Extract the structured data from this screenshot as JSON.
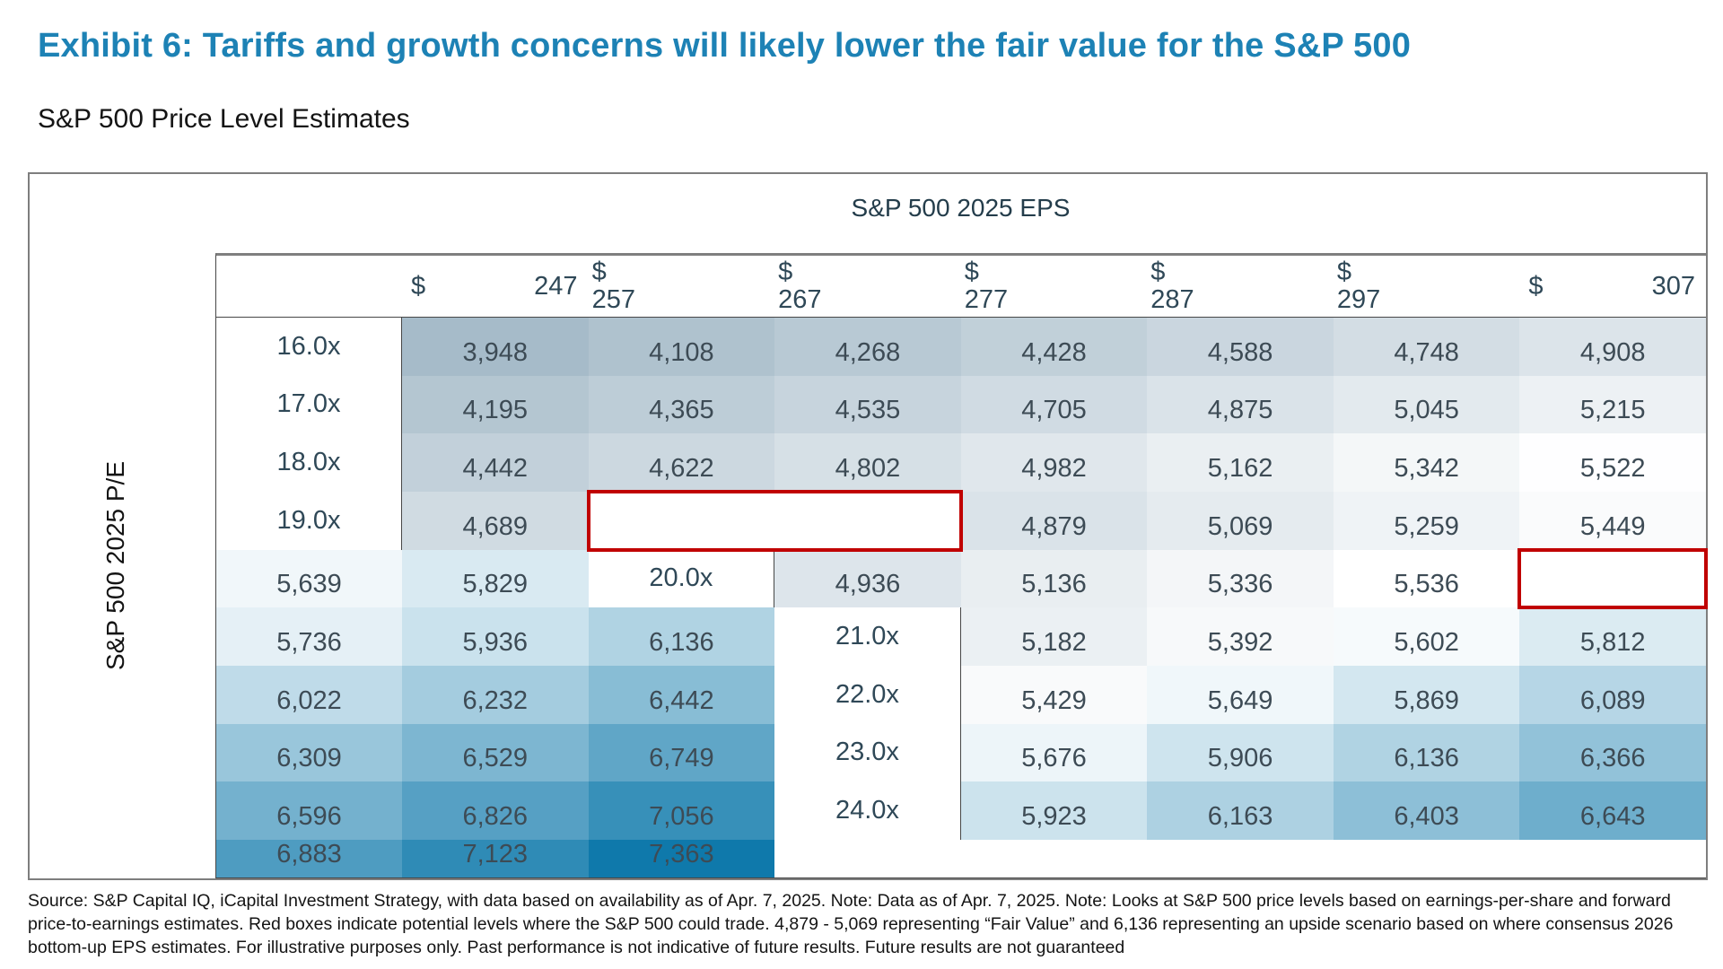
{
  "page": {
    "title": "Exhibit 6: Tariffs and growth concerns will likely lower the fair value for the S&P 500",
    "subtitle": "S&P 500 Price Level Estimates"
  },
  "table": {
    "column_axis_label": "S&P 500 2025 EPS",
    "row_axis_label": "S&P 500 2025 P/E",
    "currency_symbol": "$",
    "eps_columns": [
      "247",
      "257",
      "267",
      "277",
      "287",
      "297",
      "307"
    ],
    "pe_rows": [
      "16.0x",
      "17.0x",
      "18.0x",
      "19.0x",
      "20.0x",
      "21.0x",
      "22.0x",
      "23.0x",
      "24.0x"
    ],
    "values": [
      [
        "3,948",
        "4,108",
        "4,268",
        "4,428",
        "4,588",
        "4,748",
        "4,908"
      ],
      [
        "4,195",
        "4,365",
        "4,535",
        "4,705",
        "4,875",
        "5,045",
        "5,215"
      ],
      [
        "4,442",
        "4,622",
        "4,802",
        "4,982",
        "5,162",
        "5,342",
        "5,522"
      ],
      [
        "4,689",
        "4,879",
        "5,069",
        "5,259",
        "5,449",
        "5,639",
        "5,829"
      ],
      [
        "4,936",
        "5,136",
        "5,336",
        "5,536",
        "5,736",
        "5,936",
        "6,136"
      ],
      [
        "5,182",
        "5,392",
        "5,602",
        "5,812",
        "6,022",
        "6,232",
        "6,442"
      ],
      [
        "5,429",
        "5,649",
        "5,869",
        "6,089",
        "6,309",
        "6,529",
        "6,749"
      ],
      [
        "5,676",
        "5,906",
        "6,136",
        "6,366",
        "6,596",
        "6,826",
        "7,056"
      ],
      [
        "5,923",
        "6,163",
        "6,403",
        "6,643",
        "6,883",
        "7,123",
        "7,363"
      ]
    ]
  },
  "highlights": [
    {
      "label": "fair-value-range",
      "row_index": 3,
      "col_start": 1,
      "col_end": 2,
      "values": "4,879 - 5,069"
    },
    {
      "label": "upside-scenario",
      "row_index": 4,
      "col_start": 6,
      "col_end": 6,
      "values": "6,136"
    }
  ],
  "colors": {
    "title_accent": "#1d82b5",
    "highlight_border": "#c00000",
    "heat_min": "#a6bbc9",
    "heat_mid": "#ffffff",
    "heat_max": "#0f79ab"
  },
  "footer": {
    "lines": [
      "Source: S&P Capital IQ, iCapital Investment Strategy, with data based on availability as of Apr. 7, 2025. Note: Data as of Apr. 7, 2025. Note: Looks at S&P 500 price levels based on earnings-per-share and forward",
      "price-to-earnings estimates. Red boxes indicate potential levels where the S&P 500 could trade. 4,879 - 5,069 representing “Fair Value” and 6,136 representing an upside scenario based on where consensus 2026",
      "bottom-up EPS estimates. For illustrative purposes only. Past performance is not indicative of future results. Future results are not guaranteed"
    ]
  },
  "chart_data": {
    "type": "heatmap",
    "title": "S&P 500 Price Level Estimates",
    "xlabel": "S&P 500 2025 EPS",
    "ylabel": "S&P 500 2025 P/E",
    "x": [
      247,
      257,
      267,
      277,
      287,
      297,
      307
    ],
    "y": [
      16.0,
      17.0,
      18.0,
      19.0,
      20.0,
      21.0,
      22.0,
      23.0,
      24.0
    ],
    "values": [
      [
        3948,
        4108,
        4268,
        4428,
        4588,
        4748,
        4908
      ],
      [
        4195,
        4365,
        4535,
        4705,
        4875,
        5045,
        5215
      ],
      [
        4442,
        4622,
        4802,
        4982,
        5162,
        5342,
        5522
      ],
      [
        4689,
        4879,
        5069,
        5259,
        5449,
        5639,
        5829
      ],
      [
        4936,
        5136,
        5336,
        5536,
        5736,
        5936,
        6136
      ],
      [
        5182,
        5392,
        5602,
        5812,
        6022,
        6232,
        6442
      ],
      [
        5429,
        5649,
        5869,
        6089,
        6309,
        6529,
        6749
      ],
      [
        5676,
        5906,
        6136,
        6366,
        6596,
        6826,
        7056
      ],
      [
        5923,
        6163,
        6403,
        6643,
        6883,
        7123,
        7363
      ]
    ],
    "color_scale": {
      "min_value": 3948,
      "mid_value": 5536,
      "max_value": 7363,
      "min_color": "#a6bbc9",
      "mid_color": "#ffffff",
      "max_color": "#0f79ab"
    },
    "annotations": [
      {
        "text": "Fair Value",
        "cells": "4,879 - 5,069",
        "row": "19.0x",
        "columns": [
          257,
          267
        ]
      },
      {
        "text": "Upside scenario",
        "cells": "6,136",
        "row": "20.0x",
        "columns": [
          307
        ]
      }
    ],
    "legend_position": "none",
    "grid": false
  }
}
